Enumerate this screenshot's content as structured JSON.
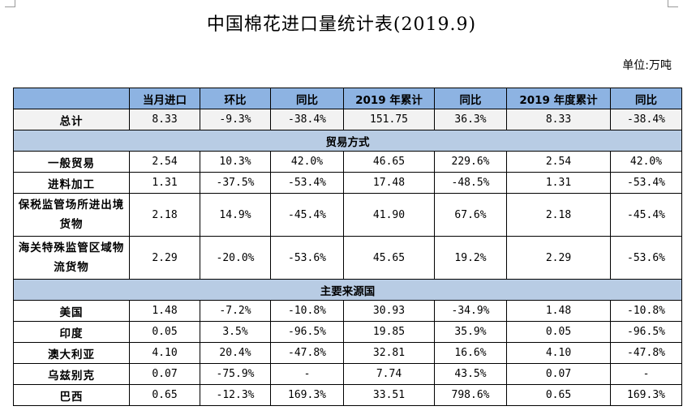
{
  "title": "中国棉花进口量统计表(2019.9)",
  "unit": "单位:万吨",
  "headers": [
    "",
    "当月进口",
    "环比",
    "同比",
    "2019 年累计",
    "同比",
    "2019 年度累计",
    "同比"
  ],
  "total": {
    "label": "总计",
    "values": [
      "8.33",
      "-9.3%",
      "-38.4%",
      "151.75",
      "36.3%",
      "8.33",
      "-38.4%"
    ]
  },
  "sections": [
    {
      "title": "贸易方式",
      "rows": [
        {
          "label": "一般贸易",
          "values": [
            "2.54",
            "10.3%",
            "42.0%",
            "46.65",
            "229.6%",
            "2.54",
            "42.0%"
          ]
        },
        {
          "label": "进料加工",
          "values": [
            "1.31",
            "-37.5%",
            "-53.4%",
            "17.48",
            "-48.5%",
            "1.31",
            "-53.4%"
          ]
        },
        {
          "label": "保税监管场所进出境货物",
          "values": [
            "2.18",
            "14.9%",
            "-45.4%",
            "41.90",
            "67.6%",
            "2.18",
            "-45.4%"
          ]
        },
        {
          "label": "海关特殊监管区域物流货物",
          "values": [
            "2.29",
            "-20.0%",
            "-53.6%",
            "45.65",
            "19.2%",
            "2.29",
            "-53.6%"
          ]
        }
      ]
    },
    {
      "title": "主要来源国",
      "rows": [
        {
          "label": "美国",
          "values": [
            "1.48",
            "-7.2%",
            "-10.8%",
            "30.93",
            "-34.9%",
            "1.48",
            "-10.8%"
          ]
        },
        {
          "label": "印度",
          "values": [
            "0.05",
            "3.5%",
            "-96.5%",
            "19.85",
            "35.9%",
            "0.05",
            "-96.5%"
          ]
        },
        {
          "label": "澳大利亚",
          "values": [
            "4.10",
            "20.4%",
            "-47.8%",
            "32.81",
            "16.6%",
            "4.10",
            "-47.8%"
          ]
        },
        {
          "label": "乌兹别克",
          "values": [
            "0.07",
            "-75.9%",
            "-",
            "7.74",
            "43.5%",
            "0.07",
            "-"
          ]
        },
        {
          "label": "巴西",
          "values": [
            "0.65",
            "-12.3%",
            "169.3%",
            "33.51",
            "798.6%",
            "0.65",
            "169.3%"
          ]
        }
      ]
    }
  ],
  "colors": {
    "header_bg": "#8db3e2",
    "section_bg": "#b8cce4",
    "total_bg": "#f2f2f2"
  }
}
